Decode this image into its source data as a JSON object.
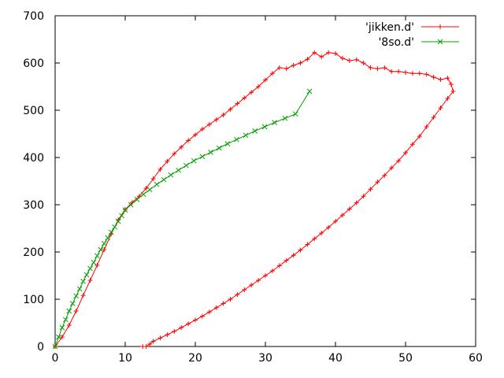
{
  "chart_data": {
    "type": "line",
    "title": "",
    "xlabel": "",
    "ylabel": "",
    "xlim": [
      0,
      60
    ],
    "ylim": [
      0,
      700
    ],
    "xticks": [
      0,
      10,
      20,
      30,
      40,
      50,
      60
    ],
    "yticks": [
      0,
      100,
      200,
      300,
      400,
      500,
      600,
      700
    ],
    "grid": false,
    "legend_position": "top-right",
    "series": [
      {
        "name": "'jikken.d'",
        "color": "#ff0000",
        "marker": "plus",
        "points": [
          [
            0,
            0
          ],
          [
            1,
            20
          ],
          [
            2,
            45
          ],
          [
            3,
            75
          ],
          [
            4,
            108
          ],
          [
            5,
            140
          ],
          [
            6,
            172
          ],
          [
            7,
            205
          ],
          [
            8,
            238
          ],
          [
            9,
            268
          ],
          [
            10,
            290
          ],
          [
            11,
            305
          ],
          [
            12,
            318
          ],
          [
            13,
            335
          ],
          [
            14,
            355
          ],
          [
            15,
            375
          ],
          [
            16,
            392
          ],
          [
            17,
            408
          ],
          [
            18,
            422
          ],
          [
            19,
            436
          ],
          [
            20,
            448
          ],
          [
            21,
            460
          ],
          [
            22,
            470
          ],
          [
            23,
            480
          ],
          [
            24,
            490
          ],
          [
            25,
            502
          ],
          [
            26,
            514
          ],
          [
            27,
            526
          ],
          [
            28,
            538
          ],
          [
            29,
            550
          ],
          [
            30,
            564
          ],
          [
            31,
            578
          ],
          [
            32,
            590
          ],
          [
            33,
            588
          ],
          [
            34,
            595
          ],
          [
            35,
            600
          ],
          [
            36,
            608
          ],
          [
            37,
            622
          ],
          [
            38,
            613
          ],
          [
            39,
            622
          ],
          [
            40,
            620
          ],
          [
            41,
            610
          ],
          [
            42,
            605
          ],
          [
            43,
            607
          ],
          [
            44,
            600
          ],
          [
            45,
            590
          ],
          [
            46,
            588
          ],
          [
            47,
            590
          ],
          [
            48,
            582
          ],
          [
            49,
            582
          ],
          [
            50,
            580
          ],
          [
            51,
            578
          ],
          [
            52,
            578
          ],
          [
            53,
            576
          ],
          [
            54,
            570
          ],
          [
            55,
            565
          ],
          [
            56,
            568
          ],
          [
            56.5,
            555
          ],
          [
            56.8,
            540
          ],
          [
            56,
            525
          ],
          [
            55,
            505
          ],
          [
            54,
            485
          ],
          [
            53,
            465
          ],
          [
            52,
            445
          ],
          [
            51,
            428
          ],
          [
            50,
            410
          ],
          [
            49,
            393
          ],
          [
            48,
            378
          ],
          [
            47,
            362
          ],
          [
            46,
            348
          ],
          [
            45,
            333
          ],
          [
            44,
            318
          ],
          [
            43,
            304
          ],
          [
            42,
            291
          ],
          [
            41,
            278
          ],
          [
            40,
            265
          ],
          [
            39,
            252
          ],
          [
            38,
            240
          ],
          [
            37,
            228
          ],
          [
            36,
            216
          ],
          [
            35,
            204
          ],
          [
            34,
            193
          ],
          [
            33,
            182
          ],
          [
            32,
            171
          ],
          [
            31,
            160
          ],
          [
            30,
            150
          ],
          [
            29,
            140
          ],
          [
            28,
            130
          ],
          [
            27,
            120
          ],
          [
            26,
            110
          ],
          [
            25,
            100
          ],
          [
            24,
            91
          ],
          [
            23,
            82
          ],
          [
            22,
            73
          ],
          [
            21,
            64
          ],
          [
            20,
            56
          ],
          [
            19,
            48
          ],
          [
            18,
            40
          ],
          [
            17,
            32
          ],
          [
            16,
            25
          ],
          [
            15,
            18
          ],
          [
            14,
            11
          ],
          [
            13.5,
            5
          ],
          [
            13,
            0
          ],
          [
            12.5,
            0
          ]
        ]
      },
      {
        "name": "'8so.d'",
        "color": "#00a000",
        "marker": "cross",
        "points": [
          [
            0,
            0
          ],
          [
            0.5,
            20
          ],
          [
            1,
            40
          ],
          [
            1.5,
            57
          ],
          [
            2,
            75
          ],
          [
            2.5,
            91
          ],
          [
            3,
            107
          ],
          [
            3.5,
            122
          ],
          [
            4,
            138
          ],
          [
            4.5,
            152
          ],
          [
            5,
            165
          ],
          [
            5.5,
            178
          ],
          [
            6,
            192
          ],
          [
            6.5,
            205
          ],
          [
            7,
            218
          ],
          [
            7.5,
            230
          ],
          [
            8,
            242
          ],
          [
            8.5,
            253
          ],
          [
            9,
            265
          ],
          [
            9.5,
            277
          ],
          [
            10,
            289
          ],
          [
            10.8,
            300
          ],
          [
            11.7,
            311
          ],
          [
            12.6,
            322
          ],
          [
            13.5,
            332
          ],
          [
            14.5,
            343
          ],
          [
            15.5,
            353
          ],
          [
            16.5,
            363
          ],
          [
            17.6,
            373
          ],
          [
            18.7,
            383
          ],
          [
            19.8,
            393
          ],
          [
            21,
            402
          ],
          [
            22.2,
            411
          ],
          [
            23.4,
            420
          ],
          [
            24.6,
            429
          ],
          [
            25.9,
            438
          ],
          [
            27.2,
            447
          ],
          [
            28.5,
            456
          ],
          [
            29.9,
            465
          ],
          [
            31.3,
            474
          ],
          [
            32.8,
            483
          ],
          [
            34.3,
            492
          ],
          [
            36.3,
            540
          ]
        ]
      }
    ]
  }
}
